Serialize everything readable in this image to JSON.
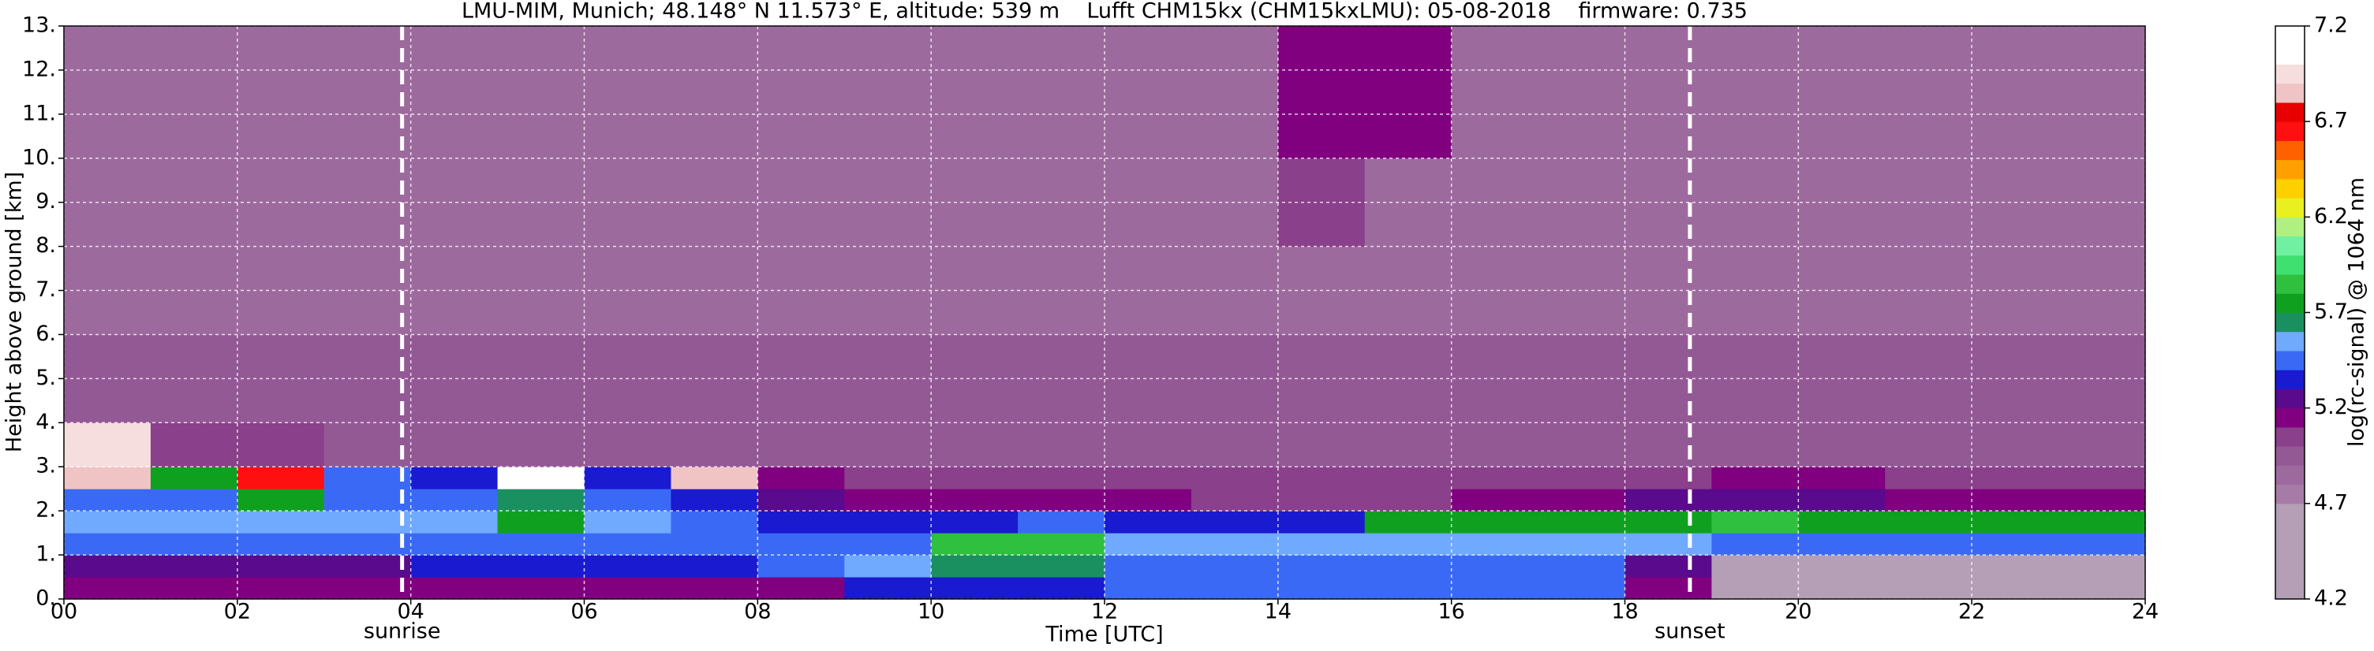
{
  "chart_data": {
    "type": "heatmap",
    "title": "LMU-MIM, Munich; 48.148° N 11.573° E, altitude: 539 m    Lufft CHM15kx (CHM15kxLMU): 05-08-2018    firmware: 0.735",
    "xlabel": "Time [UTC]",
    "ylabel": "Height above ground [km]",
    "colorbar_label": "log(rc-signal) @ 1064 nm",
    "xlim": [
      0,
      24
    ],
    "ylim": [
      0,
      13
    ],
    "xticks": [
      {
        "value": 0,
        "label": "00"
      },
      {
        "value": 2,
        "label": "02"
      },
      {
        "value": 4,
        "label": "04"
      },
      {
        "value": 6,
        "label": "06"
      },
      {
        "value": 8,
        "label": "08"
      },
      {
        "value": 10,
        "label": "10"
      },
      {
        "value": 12,
        "label": "12"
      },
      {
        "value": 14,
        "label": "14"
      },
      {
        "value": 16,
        "label": "16"
      },
      {
        "value": 18,
        "label": "18"
      },
      {
        "value": 20,
        "label": "20"
      },
      {
        "value": 22,
        "label": "22"
      },
      {
        "value": 24,
        "label": "24"
      }
    ],
    "yticks": [
      {
        "value": 0,
        "label": "0."
      },
      {
        "value": 1,
        "label": "1."
      },
      {
        "value": 2,
        "label": "2."
      },
      {
        "value": 3,
        "label": "3."
      },
      {
        "value": 4,
        "label": "4."
      },
      {
        "value": 5,
        "label": "5."
      },
      {
        "value": 6,
        "label": "6."
      },
      {
        "value": 7,
        "label": "7."
      },
      {
        "value": 8,
        "label": "8."
      },
      {
        "value": 9,
        "label": "9."
      },
      {
        "value": 10,
        "label": "10."
      },
      {
        "value": 11,
        "label": "11."
      },
      {
        "value": 12,
        "label": "12."
      },
      {
        "value": 13,
        "label": "13."
      }
    ],
    "clim": [
      4.2,
      7.2
    ],
    "cticks": [
      4.2,
      4.7,
      5.2,
      5.7,
      6.2,
      6.7,
      7.2
    ],
    "cstep": 0.1,
    "colormap": [
      "#b49fb6",
      "#b49fb6",
      "#b49fb6",
      "#b49fb6",
      "#b49fb6",
      "#a77ba8",
      "#9d6a9e",
      "#935995",
      "#8a408a",
      "#800080",
      "#5a0a8c",
      "#1a1ad0",
      "#3a6af5",
      "#70aaff",
      "#1a9060",
      "#10a020",
      "#30c040",
      "#40e070",
      "#70f0a0",
      "#b0f080",
      "#e8f020",
      "#ffd000",
      "#ffa000",
      "#ff6000",
      "#ff1010",
      "#e80000",
      "#f0c4c4",
      "#f6dede",
      "#ffffff",
      "#ffffff"
    ],
    "grid": true,
    "annotations": [
      {
        "label": "sunrise",
        "x": 3.9
      },
      {
        "label": "sunset",
        "x": 18.75
      }
    ],
    "xbins": [
      0,
      1,
      2,
      3,
      4,
      5,
      6,
      7,
      8,
      9,
      10,
      11,
      12,
      13,
      14,
      15,
      16,
      17,
      18,
      19,
      20,
      21,
      22,
      23,
      24
    ],
    "ybins": [
      0,
      0.5,
      1,
      1.5,
      2,
      2.5,
      3,
      4,
      6,
      8,
      10,
      13
    ],
    "z": [
      [
        5.1,
        5.1,
        5.1,
        5.1,
        5.1,
        5.1,
        5.1,
        5.1,
        5.1,
        5.3,
        5.3,
        5.3,
        5.45,
        5.45,
        5.45,
        5.45,
        5.45,
        5.45,
        5.1,
        4.6,
        4.6,
        4.6,
        4.6,
        4.6
      ],
      [
        5.2,
        5.2,
        5.2,
        5.2,
        5.3,
        5.3,
        5.3,
        5.35,
        5.4,
        5.5,
        5.6,
        5.6,
        5.45,
        5.45,
        5.45,
        5.45,
        5.45,
        5.45,
        5.2,
        4.65,
        4.65,
        4.65,
        4.65,
        4.65
      ],
      [
        5.4,
        5.4,
        5.4,
        5.4,
        5.45,
        5.45,
        5.45,
        5.45,
        5.45,
        5.45,
        5.8,
        5.8,
        5.5,
        5.5,
        5.5,
        5.5,
        5.5,
        5.5,
        5.5,
        5.45,
        5.45,
        5.45,
        5.45,
        5.45
      ],
      [
        5.5,
        5.5,
        5.5,
        5.5,
        5.5,
        5.75,
        5.5,
        5.4,
        5.3,
        5.3,
        5.3,
        5.4,
        5.35,
        5.3,
        5.35,
        5.7,
        5.7,
        5.75,
        5.75,
        5.8,
        5.7,
        5.7,
        5.7,
        5.75
      ],
      [
        5.45,
        5.45,
        5.7,
        5.45,
        5.4,
        5.6,
        5.45,
        5.3,
        5.2,
        5.15,
        5.1,
        5.1,
        5.1,
        5.05,
        5.05,
        5.05,
        5.1,
        5.1,
        5.2,
        5.2,
        5.2,
        5.15,
        5.1,
        5.1
      ],
      [
        6.8,
        5.7,
        6.6,
        5.4,
        5.3,
        7.0,
        5.3,
        6.8,
        5.1,
        5.05,
        5.0,
        5.0,
        5.0,
        5.0,
        5.0,
        5.0,
        5.0,
        5.0,
        5.05,
        5.1,
        5.1,
        5.05,
        5.0,
        5.0
      ],
      [
        6.9,
        5.0,
        5.0,
        4.95,
        4.95,
        4.95,
        4.95,
        4.95,
        4.95,
        4.95,
        4.95,
        4.95,
        4.95,
        4.95,
        4.95,
        4.95,
        4.95,
        4.95,
        4.95,
        4.95,
        4.95,
        4.95,
        4.95,
        4.95
      ],
      [
        4.9,
        4.9,
        4.9,
        4.9,
        4.9,
        4.9,
        4.9,
        4.9,
        4.9,
        4.9,
        4.9,
        4.9,
        4.9,
        4.9,
        4.9,
        4.9,
        4.9,
        4.9,
        4.9,
        4.9,
        4.9,
        4.9,
        4.9,
        4.9
      ],
      [
        4.85,
        4.85,
        4.85,
        4.85,
        4.85,
        4.85,
        4.85,
        4.85,
        4.85,
        4.85,
        4.85,
        4.85,
        4.85,
        4.85,
        4.85,
        4.85,
        4.85,
        4.85,
        4.85,
        4.85,
        4.85,
        4.85,
        4.85,
        4.85
      ],
      [
        4.85,
        4.85,
        4.85,
        4.85,
        4.85,
        4.85,
        4.85,
        4.85,
        4.85,
        4.85,
        4.85,
        4.85,
        4.85,
        4.85,
        5.0,
        4.85,
        4.85,
        4.85,
        4.85,
        4.85,
        4.85,
        4.85,
        4.85,
        4.85
      ],
      [
        4.8,
        4.8,
        4.8,
        4.8,
        4.8,
        4.8,
        4.8,
        4.8,
        4.8,
        4.8,
        4.8,
        4.8,
        4.8,
        4.8,
        5.1,
        5.1,
        4.8,
        4.8,
        4.8,
        4.8,
        4.8,
        4.8,
        4.8,
        4.8
      ]
    ]
  }
}
